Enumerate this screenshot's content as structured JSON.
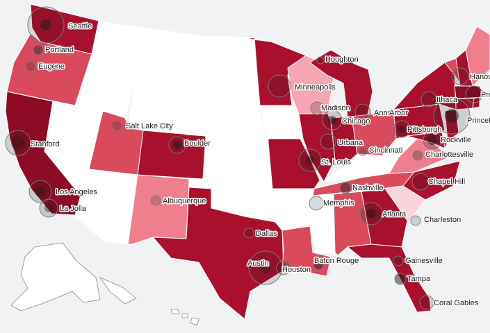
{
  "palette": {
    "level0": "#ffffff",
    "level1": "#fbd3dc",
    "level2": "#f6a5b2",
    "level3": "#f07f8d",
    "level4": "#d94a5d",
    "level5": "#c4203c",
    "level6": "#a8102d",
    "level7": "#8e0b25"
  },
  "states": [
    {
      "id": "WA",
      "level": 6
    },
    {
      "id": "OR",
      "level": 4
    },
    {
      "id": "CA",
      "level": 7
    },
    {
      "id": "NV",
      "level": 0
    },
    {
      "id": "ID",
      "level": 0
    },
    {
      "id": "MT",
      "level": 0
    },
    {
      "id": "WY",
      "level": 0
    },
    {
      "id": "UT",
      "level": 4
    },
    {
      "id": "AZ",
      "level": 0
    },
    {
      "id": "CO",
      "level": 6
    },
    {
      "id": "NM",
      "level": 3
    },
    {
      "id": "ND",
      "level": 0
    },
    {
      "id": "SD",
      "level": 0
    },
    {
      "id": "NE",
      "level": 0
    },
    {
      "id": "KS",
      "level": 0
    },
    {
      "id": "OK",
      "level": 0
    },
    {
      "id": "TX",
      "level": 6
    },
    {
      "id": "MN",
      "level": 6
    },
    {
      "id": "IA",
      "level": 0
    },
    {
      "id": "MO",
      "level": 6
    },
    {
      "id": "AR",
      "level": 0
    },
    {
      "id": "LA",
      "level": 4
    },
    {
      "id": "WI",
      "level": 2
    },
    {
      "id": "IL",
      "level": 6
    },
    {
      "id": "IN",
      "level": 6
    },
    {
      "id": "MI",
      "level": 6
    },
    {
      "id": "OH",
      "level": 4
    },
    {
      "id": "KY",
      "level": 0
    },
    {
      "id": "TN",
      "level": 4
    },
    {
      "id": "MS",
      "level": 0
    },
    {
      "id": "AL",
      "level": 4
    },
    {
      "id": "GA",
      "level": 6
    },
    {
      "id": "FL",
      "level": 6
    },
    {
      "id": "SC",
      "level": 1
    },
    {
      "id": "NC",
      "level": 6
    },
    {
      "id": "VA",
      "level": 3
    },
    {
      "id": "WV",
      "level": 0
    },
    {
      "id": "PA",
      "level": 6
    },
    {
      "id": "NY",
      "level": 6
    },
    {
      "id": "NJ",
      "level": 6
    },
    {
      "id": "DE",
      "level": 5
    },
    {
      "id": "MD",
      "level": 6
    },
    {
      "id": "VT",
      "level": 4
    },
    {
      "id": "NH",
      "level": 6
    },
    {
      "id": "ME",
      "level": 3
    },
    {
      "id": "MA",
      "level": 7
    },
    {
      "id": "CT",
      "level": 6
    },
    {
      "id": "RI",
      "level": 6
    }
  ],
  "cities": [
    {
      "name": "Seattle",
      "bubbles": [
        {
          "r": 26,
          "c": 0.25
        },
        {
          "r": 8,
          "c": 0.9
        }
      ]
    },
    {
      "name": "Portland",
      "bubbles": [
        {
          "r": 7,
          "c": 0.7
        }
      ]
    },
    {
      "name": "Eugene",
      "bubbles": [
        {
          "r": 7,
          "c": 0.4
        }
      ]
    },
    {
      "name": "Stanford",
      "bubbles": [
        {
          "r": 18,
          "c": 0.3
        },
        {
          "r": 10,
          "c": 0.6
        }
      ]
    },
    {
      "name": "Los Angeles",
      "bubbles": [
        {
          "r": 16,
          "c": 0.35
        },
        {
          "r": 8,
          "c": 0.7
        }
      ]
    },
    {
      "name": "La Jolla",
      "bubbles": [
        {
          "r": 13,
          "c": 0.35
        },
        {
          "r": 6,
          "c": 0.7
        }
      ]
    },
    {
      "name": "Salt Lake City",
      "bubbles": [
        {
          "r": 7,
          "c": 0.35
        }
      ]
    },
    {
      "name": "Boulder",
      "bubbles": [
        {
          "r": 12,
          "c": 0.3
        },
        {
          "r": 6,
          "c": 0.9
        }
      ]
    },
    {
      "name": "Albuquerque",
      "bubbles": [
        {
          "r": 7,
          "c": 0.3
        }
      ]
    },
    {
      "name": "Dallas",
      "bubbles": [
        {
          "r": 7,
          "c": 0.35
        }
      ]
    },
    {
      "name": "Austin",
      "bubbles": [
        {
          "r": 24,
          "c": 0.3
        },
        {
          "r": 8,
          "c": 0.5
        }
      ]
    },
    {
      "name": "Houston",
      "bubbles": [
        {
          "r": 10,
          "c": 0.35
        }
      ]
    },
    {
      "name": "Minneapolis",
      "bubbles": [
        {
          "r": 16,
          "c": 0.3
        }
      ]
    },
    {
      "name": "Houghton",
      "bubbles": [
        {
          "r": 5,
          "c": 0.3
        }
      ]
    },
    {
      "name": "Madison",
      "bubbles": [
        {
          "r": 9,
          "c": 0.35
        }
      ]
    },
    {
      "name": "Chicago",
      "bubbles": [
        {
          "r": 14,
          "c": 0.35
        },
        {
          "r": 6,
          "c": 0.95
        }
      ]
    },
    {
      "name": "Ann Arbor",
      "bubbles": [
        {
          "r": 11,
          "c": 0.4
        }
      ]
    },
    {
      "name": "Urbana",
      "bubbles": [
        {
          "r": 11,
          "c": 0.35
        }
      ]
    },
    {
      "name": "St. Louis",
      "bubbles": [
        {
          "r": 16,
          "c": 0.4
        },
        {
          "r": 6,
          "c": 0.8
        }
      ]
    },
    {
      "name": "Cincinnati",
      "bubbles": [
        {
          "r": 6,
          "c": 0.35
        }
      ]
    },
    {
      "name": "Nashville",
      "bubbles": [
        {
          "r": 8,
          "c": 0.8
        }
      ]
    },
    {
      "name": "Memphis",
      "bubbles": [
        {
          "r": 10,
          "c": 0.3
        }
      ]
    },
    {
      "name": "Atlanta",
      "bubbles": [
        {
          "r": 16,
          "c": 0.4
        },
        {
          "r": 7,
          "c": 0.9
        }
      ]
    },
    {
      "name": "Baton Rouge",
      "bubbles": [
        {
          "r": 7,
          "c": 0.85
        }
      ]
    },
    {
      "name": "Gainesville",
      "bubbles": [
        {
          "r": 7,
          "c": 0.4
        }
      ]
    },
    {
      "name": "Tampa",
      "bubbles": [
        {
          "r": 8,
          "c": 0.9
        }
      ]
    },
    {
      "name": "Coral Gables",
      "bubbles": [
        {
          "r": 10,
          "c": 0.3
        }
      ]
    },
    {
      "name": "Charleston",
      "bubbles": [
        {
          "r": 7,
          "c": 0.3
        }
      ]
    },
    {
      "name": "Chapel Hill",
      "bubbles": [
        {
          "r": 12,
          "c": 0.35
        }
      ]
    },
    {
      "name": "Charlottesville",
      "bubbles": [
        {
          "r": 7,
          "c": 0.5
        }
      ]
    },
    {
      "name": "Rockville",
      "bubbles": [
        {
          "r": 13,
          "c": 0.4
        },
        {
          "r": 7,
          "c": 0.9
        }
      ]
    },
    {
      "name": "Pittsburgh",
      "bubbles": [
        {
          "r": 12,
          "c": 0.35
        },
        {
          "r": 5,
          "c": 0.7
        }
      ]
    },
    {
      "name": "Ithaca",
      "bubbles": [
        {
          "r": 11,
          "c": 0.35
        }
      ]
    },
    {
      "name": "Princeton",
      "bubbles": [
        {
          "r": 26,
          "c": 0.3
        },
        {
          "r": 10,
          "c": 0.95
        }
      ]
    },
    {
      "name": "Hanover",
      "bubbles": [
        {
          "r": 12,
          "c": 0.35
        }
      ]
    },
    {
      "name": "Providence",
      "bubbles": [
        {
          "r": 12,
          "c": 0.35
        }
      ]
    }
  ]
}
